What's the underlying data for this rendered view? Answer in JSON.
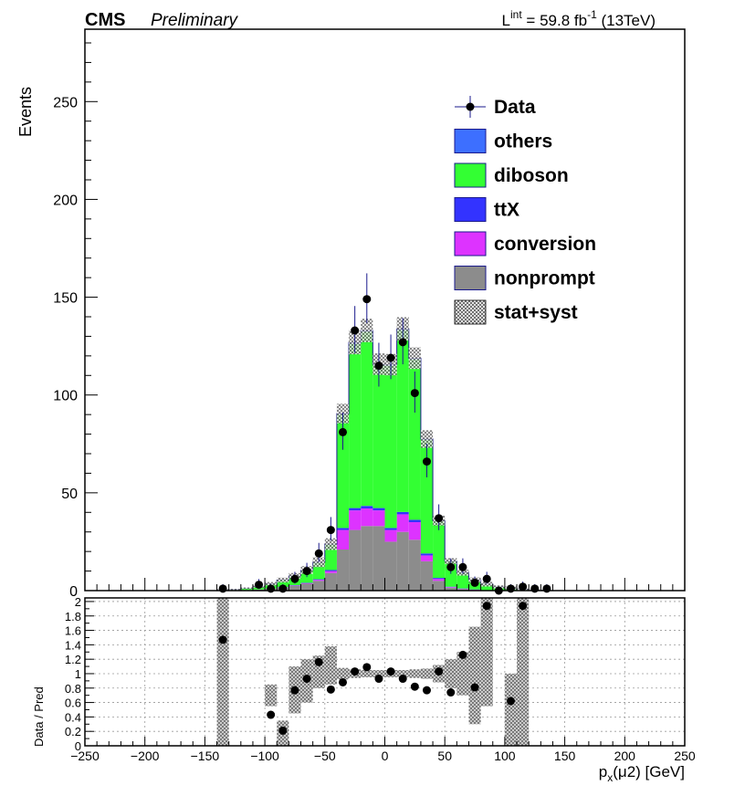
{
  "header": {
    "experiment": "CMS",
    "status": "Preliminary",
    "lumi_prefix": "L",
    "lumi_sup": "int",
    "lumi_value": " = 59.8 fb",
    "lumi_exp": "-1",
    "lumi_energy": " (13TeV)"
  },
  "legend": {
    "items": [
      {
        "key": "data",
        "label": "Data",
        "color": "#000000"
      },
      {
        "key": "others",
        "label": "others",
        "color": "#3d6fff"
      },
      {
        "key": "diboson",
        "label": "diboson",
        "color": "#33ff33"
      },
      {
        "key": "ttX",
        "label": "ttX",
        "color": "#3333ff"
      },
      {
        "key": "conversion",
        "label": "conversion",
        "color": "#dd33ff"
      },
      {
        "key": "nonprompt",
        "label": "nonprompt",
        "color": "#8c8c8c"
      },
      {
        "key": "stat",
        "label": "stat+syst",
        "color": "#999999"
      }
    ]
  },
  "chart_data": {
    "type": "bar",
    "stacked": true,
    "xlabel_main": "p",
    "xlabel_sub": "x",
    "xlabel_rest": "(μ2) [GeV]",
    "ylabel": "Events",
    "ratio_ylabel": "Data / Pred",
    "xlim": [
      -250,
      250
    ],
    "ylim": [
      0,
      287
    ],
    "ratio_ylim": [
      0,
      2.05
    ],
    "x_ticks": [
      "−250",
      "−200",
      "−150",
      "−100",
      "−50",
      "0",
      "50",
      "100",
      "150",
      "200",
      "250"
    ],
    "y_ticks": [
      "0",
      "50",
      "100",
      "150",
      "200",
      "250"
    ],
    "ratio_ticks": [
      "0",
      "0.2",
      "0.4",
      "0.6",
      "0.8",
      "1",
      "1.2",
      "1.4",
      "1.6",
      "1.8",
      "2"
    ],
    "bin_width": 10,
    "bin_lows": [
      -140,
      -130,
      -120,
      -110,
      -100,
      -90,
      -80,
      -70,
      -60,
      -50,
      -40,
      -30,
      -20,
      -10,
      0,
      10,
      20,
      30,
      40,
      50,
      60,
      70,
      80,
      90,
      100,
      110,
      120,
      130
    ],
    "series": [
      {
        "name": "nonprompt",
        "values": [
          0,
          0.1,
          0.3,
          0.6,
          1.1,
          1.6,
          2.5,
          3.5,
          5,
          9,
          21,
          31,
          33,
          33,
          25,
          30,
          26,
          15,
          5,
          1.5,
          0.8,
          0.4,
          0.2,
          0.1,
          0.1,
          0,
          0,
          0
        ]
      },
      {
        "name": "conversion",
        "values": [
          0,
          0,
          0,
          0,
          0,
          0.1,
          0.2,
          0.3,
          0.5,
          1,
          10,
          10,
          9,
          8,
          6,
          9,
          9,
          3,
          1,
          0.3,
          0.2,
          0.1,
          0,
          0,
          0,
          0,
          0,
          0
        ]
      },
      {
        "name": "ttX",
        "values": [
          0,
          0,
          0,
          0,
          0,
          0.1,
          0.1,
          0.2,
          0.3,
          0.5,
          1,
          1.2,
          1.3,
          1.2,
          1,
          1.2,
          1.2,
          1,
          0.5,
          0.2,
          0.1,
          0.1,
          0,
          0,
          0,
          0,
          0,
          0
        ]
      },
      {
        "name": "diboson",
        "values": [
          0.3,
          0.5,
          0.9,
          1.4,
          2.4,
          3.5,
          4.6,
          6.3,
          8.5,
          13,
          58,
          84,
          89,
          73,
          83,
          93,
          82,
          58,
          29,
          13,
          8,
          4.7,
          3.1,
          1.8,
          1.2,
          0.7,
          0.3,
          0.2
        ]
      },
      {
        "name": "others",
        "values": [
          0,
          0,
          0,
          0,
          0,
          0.1,
          0.1,
          0.2,
          0.2,
          0.3,
          0.5,
          0.6,
          0.7,
          0.6,
          0.5,
          0.6,
          0.6,
          0.5,
          0.3,
          0.1,
          0.1,
          0.1,
          0,
          0,
          0,
          0,
          0,
          0
        ]
      }
    ],
    "totals": [
      0.3,
      0.6,
      1.2,
      2.0,
      3.5,
      5.4,
      7.5,
      10.5,
      14.5,
      23.8,
      90.5,
      126.8,
      133,
      115.8,
      115.5,
      133.8,
      118.8,
      77.5,
      35.8,
      15.1,
      9.2,
      5.4,
      3.3,
      1.9,
      1.3,
      0.7,
      0.3,
      0.2
    ],
    "errors": [
      0.5,
      0.3,
      0.4,
      0.5,
      0.9,
      1.2,
      1.5,
      2,
      2.5,
      3,
      5,
      6,
      6,
      5.5,
      5.5,
      6,
      5.5,
      4.5,
      2.5,
      1.5,
      1.5,
      1.3,
      1.2,
      0.8,
      0.8,
      0.5,
      0.3,
      0.3
    ],
    "data": {
      "x": [
        -135,
        -105,
        -95,
        -85,
        -75,
        -65,
        -55,
        -45,
        -35,
        -25,
        -15,
        -5,
        5,
        15,
        25,
        35,
        45,
        55,
        65,
        75,
        85,
        95,
        105,
        115,
        125,
        135
      ],
      "y": [
        1,
        3,
        1,
        1,
        6,
        10,
        19,
        31,
        81,
        133,
        149,
        115,
        119,
        127,
        101,
        66,
        37,
        12,
        12,
        4,
        6,
        0,
        1,
        2,
        1,
        1
      ],
      "err_low": [
        0.8,
        1.6,
        0.8,
        0.8,
        2.4,
        3.1,
        4.3,
        5.5,
        9,
        11.5,
        12.2,
        10.7,
        10.9,
        11.3,
        10,
        8.1,
        6.1,
        3.4,
        3.4,
        1.9,
        2.4,
        0,
        0.8,
        1.3,
        0.8,
        0.8
      ],
      "err_high": [
        2.3,
        2.9,
        2.3,
        2.3,
        3.6,
        4.2,
        5.4,
        6.6,
        10,
        12.5,
        13.2,
        11.7,
        11.9,
        12.3,
        11,
        9.1,
        7.1,
        4.5,
        4.5,
        3.2,
        3.6,
        1.8,
        2.3,
        2.6,
        2.3,
        2.3
      ]
    },
    "ratio": {
      "x": [
        -135,
        -95,
        -85,
        -75,
        -65,
        -55,
        -45,
        -35,
        -25,
        -15,
        -5,
        5,
        15,
        25,
        35,
        45,
        55,
        65,
        75,
        85,
        105,
        115
      ],
      "y": [
        1.47,
        0.43,
        0.21,
        0.77,
        0.93,
        1.16,
        0.78,
        0.88,
        1.03,
        1.09,
        0.93,
        1.03,
        0.93,
        0.82,
        0.77,
        1.03,
        0.74,
        1.26,
        0.81,
        1.94,
        0.62,
        1.94
      ]
    },
    "ratio_band": {
      "lows": [
        -140,
        -100,
        -90,
        -80,
        -70,
        -60,
        -50,
        -40,
        -30,
        -20,
        -10,
        0,
        10,
        20,
        30,
        40,
        50,
        60,
        70,
        80,
        100,
        110
      ],
      "lo": [
        0,
        0.55,
        0,
        0.45,
        0.6,
        0.8,
        0.85,
        0.92,
        0.94,
        0.95,
        0.95,
        0.95,
        0.95,
        0.94,
        0.93,
        0.88,
        0.8,
        0.7,
        0.3,
        0.55,
        0,
        0
      ],
      "hi": [
        2.05,
        0.85,
        0.35,
        1.1,
        1.2,
        1.25,
        1.38,
        1.08,
        1.06,
        1.05,
        1.05,
        1.05,
        1.05,
        1.06,
        1.07,
        1.12,
        1.2,
        1.3,
        1.65,
        2.05,
        1.0,
        2.05
      ]
    }
  }
}
